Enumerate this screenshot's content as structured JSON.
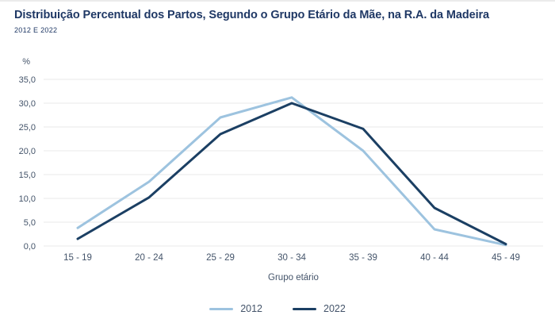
{
  "header": {
    "title": "Distribuição Percentual dos Partos, Segundo o Grupo Etário da Mãe, na R.A. da Madeira",
    "subtitle": "2012 E 2022"
  },
  "chart_data": {
    "type": "line",
    "title": "Distribuição Percentual dos Partos, Segundo o Grupo Etário da Mãe, na R.A. da Madeira",
    "subtitle": "2012 E 2022",
    "categories": [
      "15 - 19",
      "20 - 24",
      "25 - 29",
      "30 - 34",
      "35 - 39",
      "40 - 44",
      "45 - 49"
    ],
    "series": [
      {
        "name": "2012",
        "color": "#9DC3DF",
        "values": [
          3.8,
          13.5,
          27.0,
          31.2,
          20.0,
          3.5,
          0.2
        ]
      },
      {
        "name": "2022",
        "color": "#1B3F63",
        "values": [
          1.5,
          10.2,
          23.5,
          30.0,
          24.6,
          8.0,
          0.4
        ]
      }
    ],
    "ylabel": "%",
    "xlabel": "Grupo etário",
    "ylim": [
      0,
      35
    ],
    "ytick_values": [
      35,
      30,
      25,
      20,
      15,
      10,
      5,
      0
    ],
    "ytick_labels": [
      "35,0",
      "30,0",
      "25,0",
      "20,0",
      "15,0",
      "10,0",
      "5,0",
      "0,0"
    ],
    "grid": "horizontal",
    "legend_position": "bottom"
  },
  "colors": {
    "title": "#1F3865",
    "axis_text": "#44546A",
    "grid": "#EAEAEA",
    "series_2012": "#9DC3DF",
    "series_2022": "#1B3F63"
  }
}
